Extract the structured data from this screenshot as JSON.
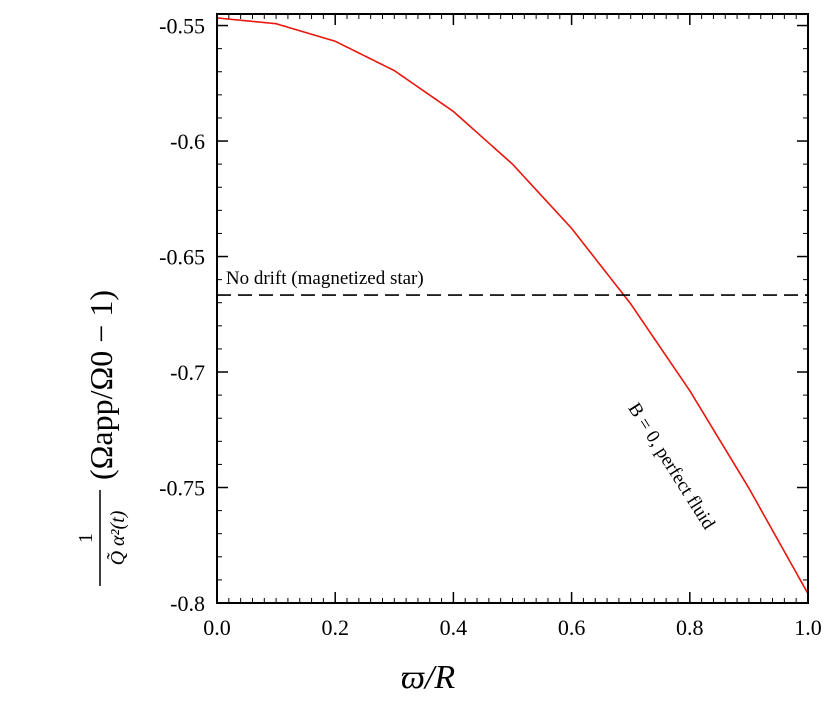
{
  "chart_data": {
    "type": "line",
    "xlabel": "ϖ/R",
    "ylabel_fraction_numerator": "1",
    "ylabel_fraction_denominator": "Q̃ α²(t)",
    "ylabel_expression": "(Ωapp/Ω0 − 1)",
    "xlim": [
      0.0,
      1.0
    ],
    "ylim": [
      -0.8,
      -0.545
    ],
    "grid": false,
    "x_ticks": [
      0.0,
      0.2,
      0.4,
      0.6,
      0.8,
      1.0
    ],
    "x_tick_labels": [
      "0.0",
      "0.2",
      "0.4",
      "0.6",
      "0.8",
      "1.0"
    ],
    "y_ticks": [
      -0.55,
      -0.6,
      -0.65,
      -0.7,
      -0.75,
      -0.8
    ],
    "y_tick_labels": [
      "-0.55",
      "-0.6",
      "-0.65",
      "-0.7",
      "-0.75",
      "-0.8"
    ],
    "series": [
      {
        "color": "#e8160c",
        "style": "solid",
        "x": [
          0.0,
          0.1,
          0.2,
          0.3,
          0.4,
          0.5,
          0.6,
          0.7,
          0.8,
          0.9,
          1.0
        ],
        "y": [
          -0.5467,
          -0.5492,
          -0.5568,
          -0.5695,
          -0.5872,
          -0.61,
          -0.6378,
          -0.6705,
          -0.7081,
          -0.7503,
          -0.796
        ]
      },
      {
        "color": "#000000",
        "style": "dashed",
        "x": [
          0.0,
          1.0
        ],
        "y": [
          -0.6667,
          -0.6667
        ]
      }
    ],
    "annotations": [
      {
        "text": "No drift (magnetized star)",
        "x": 0.015,
        "y": -0.662
      },
      {
        "text": "B = 0, perfect fluid",
        "x": 0.695,
        "y": -0.7155
      }
    ]
  }
}
